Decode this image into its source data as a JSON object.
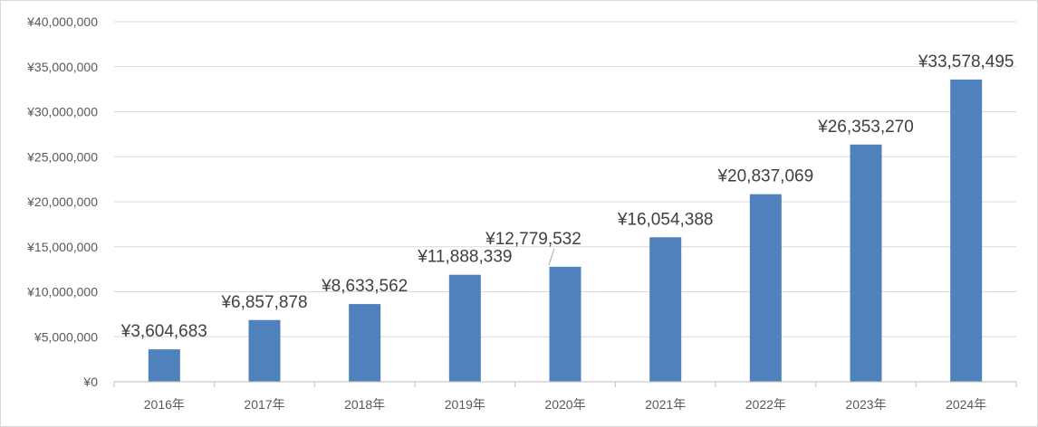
{
  "chart_data": {
    "type": "bar",
    "categories": [
      "2016年",
      "2017年",
      "2018年",
      "2019年",
      "2020年",
      "2021年",
      "2022年",
      "2023年",
      "2024年"
    ],
    "values": [
      3604683,
      6857878,
      8633562,
      11888339,
      12779532,
      16054388,
      20837069,
      26353270,
      33578495
    ],
    "data_labels": [
      "¥3,604,683",
      "¥6,857,878",
      "¥8,633,562",
      "¥11,888,339",
      "¥12,779,532",
      "¥16,054,388",
      "¥20,837,069",
      "¥26,353,270",
      "¥33,578,495"
    ],
    "y_ticks": [
      "¥0",
      "¥5,000,000",
      "¥10,000,000",
      "¥15,000,000",
      "¥20,000,000",
      "¥25,000,000",
      "¥30,000,000",
      "¥35,000,000",
      "¥40,000,000"
    ],
    "ylim": [
      0,
      40000000
    ],
    "grid": true,
    "legend": "none",
    "colors": {
      "bar": "#4f81bd",
      "grid": "#d9d9d9",
      "axis": "#bfbfbf",
      "leader_line": "#a6a6a6"
    }
  }
}
